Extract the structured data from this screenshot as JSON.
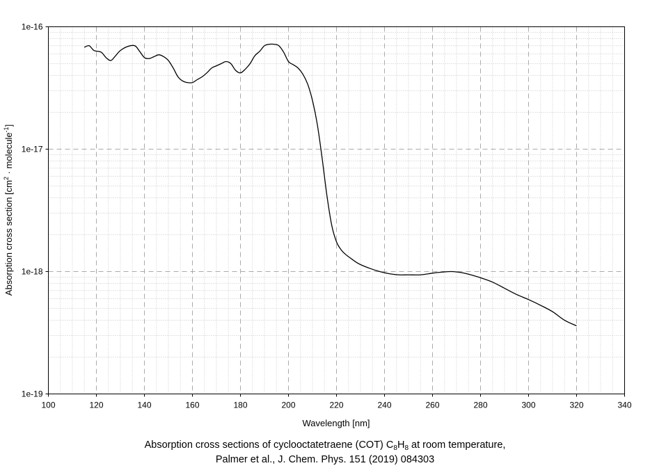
{
  "chart_data": {
    "type": "line",
    "title_line1_parts": [
      "Absorption cross sections of cyclooctatetraene (COT) C",
      "8",
      "H",
      "8",
      " at room temperature,"
    ],
    "title_line2": "Palmer et al., J. Chem. Phys. 151 (2019) 084303",
    "xlabel": "Wavelength [nm]",
    "ylabel_parts": [
      "Absorption cross section [cm",
      "2",
      " · molecule",
      "-1",
      "]"
    ],
    "xlim": [
      100,
      340
    ],
    "ylim": [
      1e-19,
      1e-16
    ],
    "yscale": "log",
    "x_ticks": [
      100,
      120,
      140,
      160,
      180,
      200,
      220,
      240,
      260,
      280,
      300,
      320,
      340
    ],
    "x_tick_labels": [
      "100",
      "120",
      "140",
      "160",
      "180",
      "200",
      "220",
      "240",
      "260",
      "280",
      "300",
      "320",
      "340"
    ],
    "y_ticks": [
      1e-19,
      1e-18,
      1e-17,
      1e-16
    ],
    "y_tick_labels": [
      "1e-19",
      "1e-18",
      "1e-17",
      "1e-16"
    ],
    "grid": true,
    "line_color": "#000000",
    "series": [
      {
        "x": [
          115,
          117,
          119,
          122,
          124,
          126,
          128,
          130,
          133,
          136,
          138,
          140,
          142,
          144,
          146,
          148,
          150,
          152,
          154,
          156,
          158,
          160,
          162,
          164,
          166,
          168,
          170,
          172,
          174,
          176,
          178,
          180,
          182,
          184,
          186,
          188,
          190,
          192,
          194,
          196,
          198,
          200,
          202,
          204,
          206,
          208,
          210,
          212,
          214,
          216,
          218,
          220,
          222,
          224,
          226,
          228,
          230,
          234,
          238,
          242,
          246,
          250,
          255,
          260,
          264,
          268,
          272,
          276,
          280,
          285,
          290,
          295,
          300,
          305,
          310,
          315,
          320
        ],
        "y": [
          6.8e-17,
          7e-17,
          6.4e-17,
          6.2e-17,
          5.6e-17,
          5.3e-17,
          5.8e-17,
          6.4e-17,
          6.9e-17,
          7e-17,
          6.3e-17,
          5.6e-17,
          5.5e-17,
          5.7e-17,
          5.9e-17,
          5.7e-17,
          5.3e-17,
          4.6e-17,
          3.9e-17,
          3.6e-17,
          3.5e-17,
          3.5e-17,
          3.7e-17,
          3.9e-17,
          4.2e-17,
          4.6e-17,
          4.8e-17,
          5e-17,
          5.2e-17,
          5e-17,
          4.4e-17,
          4.2e-17,
          4.5e-17,
          5e-17,
          5.8e-17,
          6.3e-17,
          7e-17,
          7.2e-17,
          7.2e-17,
          7e-17,
          6.2e-17,
          5.2e-17,
          4.9e-17,
          4.6e-17,
          4.1e-17,
          3.4e-17,
          2.5e-17,
          1.6e-17,
          8.5e-18,
          4.2e-18,
          2.4e-18,
          1.75e-18,
          1.5e-18,
          1.37e-18,
          1.28e-18,
          1.2e-18,
          1.14e-18,
          1.06e-18,
          1e-18,
          9.6e-19,
          9.4e-19,
          9.4e-19,
          9.4e-19,
          9.7e-19,
          9.9e-19,
          1e-18,
          9.8e-19,
          9.4e-19,
          8.9e-19,
          8.2e-19,
          7.3e-19,
          6.5e-19,
          5.9e-19,
          5.3e-19,
          4.7e-19,
          4e-19,
          3.6e-19
        ]
      }
    ]
  }
}
